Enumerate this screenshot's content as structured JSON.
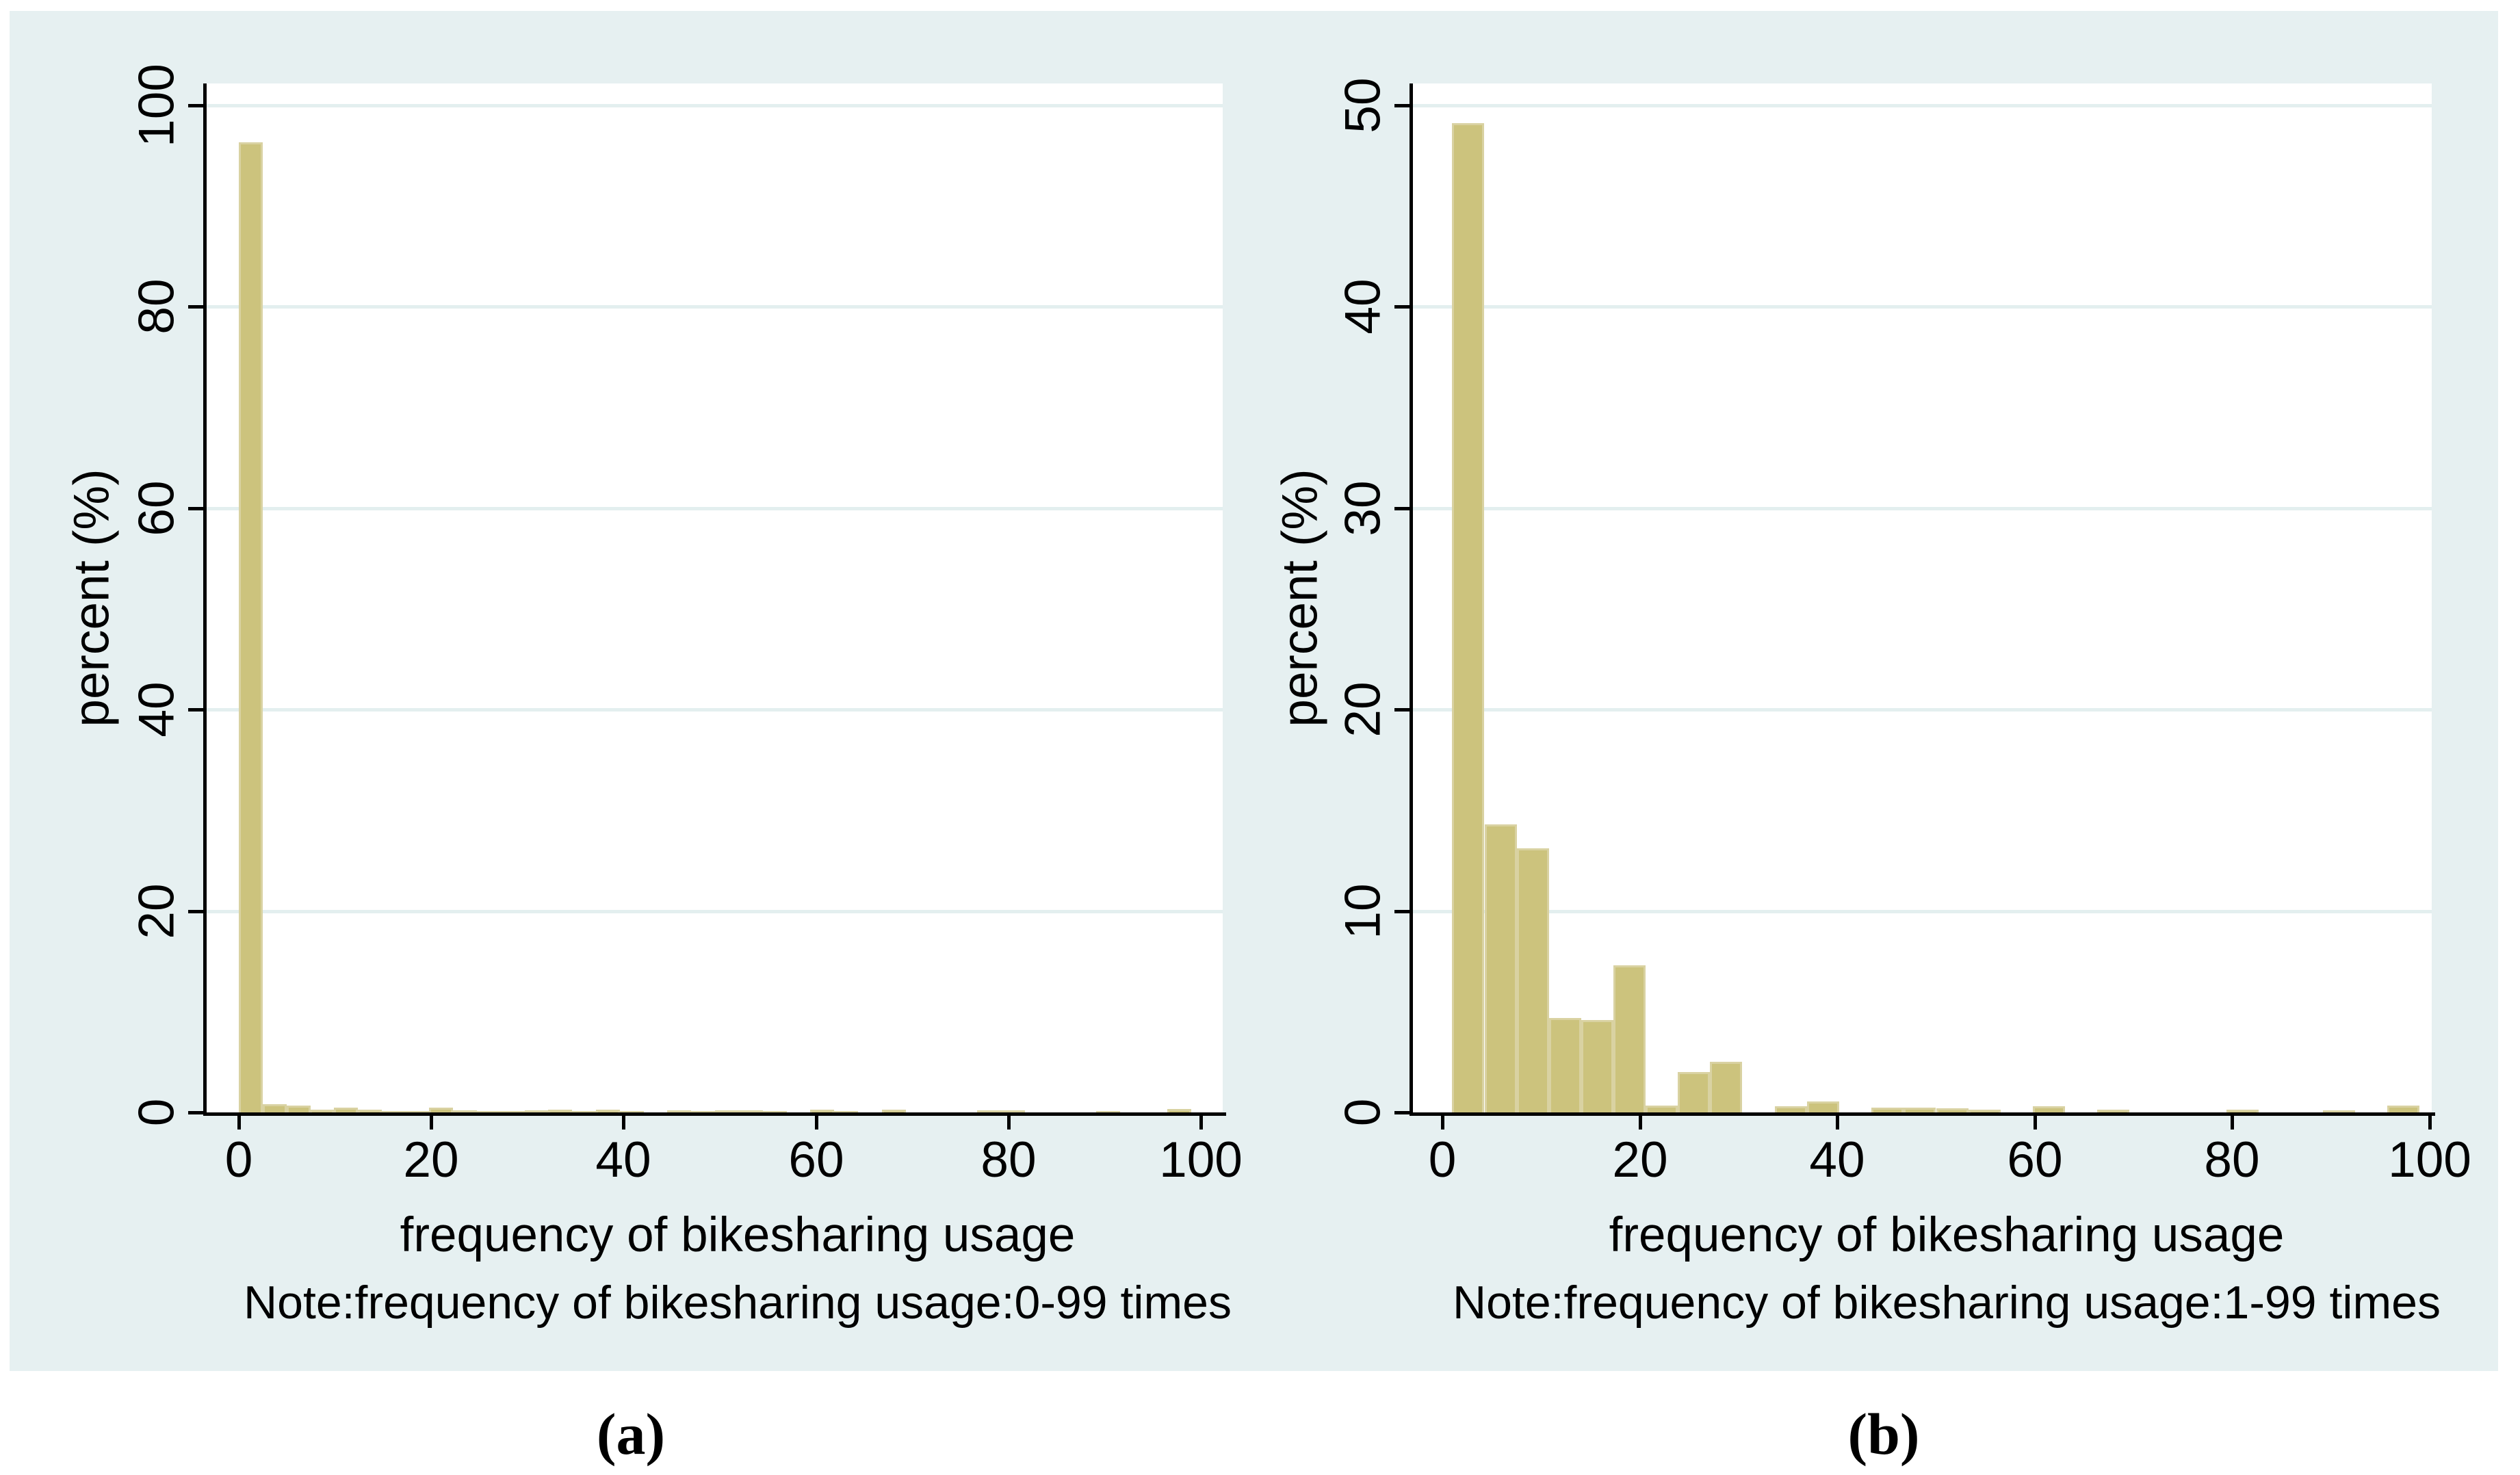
{
  "page": {
    "background": "#FFFFFF"
  },
  "figure": {
    "background": "#E6F0F1",
    "plot_background": "#FFFFFF",
    "bar_fill": "#CCC37D",
    "bar_border": "#D9D2A2",
    "gridline_color": "#E3EFEF",
    "axis_color": "#000000",
    "text_color": "#000000"
  },
  "captions": [
    {
      "label": "(a)"
    },
    {
      "label": "(b)"
    }
  ],
  "chart_data": [
    {
      "panel": "a",
      "type": "bar",
      "subtype": "histogram",
      "title": "",
      "ylabel": "percent (%)",
      "xlabel": "frequency of bikesharing usage",
      "note": "Note:frequency of bikesharing usage:0-99 times",
      "x_range": [
        0,
        99
      ],
      "bin_width": 2.475,
      "xlim": [
        -3.5,
        102.5
      ],
      "ylim": [
        0,
        100
      ],
      "x_ticks": [
        0,
        20,
        40,
        60,
        80,
        100
      ],
      "y_ticks": [
        0,
        20,
        40,
        60,
        80,
        100
      ],
      "grid": "horizontal",
      "legend": "none",
      "y_tick_label_rotation": -90,
      "bars": [
        {
          "x": 0,
          "pct": 96.3
        },
        {
          "x": 2.475,
          "pct": 0.82
        },
        {
          "x": 4.95,
          "pct": 0.65
        },
        {
          "x": 7.425,
          "pct": 0.3
        },
        {
          "x": 9.9,
          "pct": 0.5
        },
        {
          "x": 12.375,
          "pct": 0.25
        },
        {
          "x": 14.85,
          "pct": 0.15
        },
        {
          "x": 17.325,
          "pct": 0.15
        },
        {
          "x": 19.8,
          "pct": 0.45
        },
        {
          "x": 22.275,
          "pct": 0.18
        },
        {
          "x": 24.75,
          "pct": 0.15
        },
        {
          "x": 27.225,
          "pct": 0.15
        },
        {
          "x": 29.7,
          "pct": 0.18
        },
        {
          "x": 32.175,
          "pct": 0.3
        },
        {
          "x": 34.65,
          "pct": 0.12
        },
        {
          "x": 37.125,
          "pct": 0.25
        },
        {
          "x": 39.6,
          "pct": 0.12
        },
        {
          "x": 44.55,
          "pct": 0.2
        },
        {
          "x": 47.025,
          "pct": 0.12
        },
        {
          "x": 49.5,
          "pct": 0.22
        },
        {
          "x": 51.975,
          "pct": 0.22
        },
        {
          "x": 54.45,
          "pct": 0.12
        },
        {
          "x": 59.4,
          "pct": 0.25
        },
        {
          "x": 61.875,
          "pct": 0.12
        },
        {
          "x": 66.825,
          "pct": 0.25
        },
        {
          "x": 76.725,
          "pct": 0.2
        },
        {
          "x": 79.2,
          "pct": 0.2
        },
        {
          "x": 89.1,
          "pct": 0.15
        },
        {
          "x": 96.525,
          "pct": 0.36
        }
      ]
    },
    {
      "panel": "b",
      "type": "bar",
      "subtype": "histogram",
      "title": "",
      "ylabel": "percent (%)",
      "xlabel": "frequency of bikesharing usage",
      "note": "Note:frequency of bikesharing usage:1-99 times",
      "x_range": [
        1,
        99
      ],
      "bin_width": 3.2667,
      "xlim": [
        -3,
        103
      ],
      "ylim": [
        0,
        50
      ],
      "x_ticks": [
        0,
        20,
        40,
        60,
        80,
        100
      ],
      "y_ticks": [
        0,
        10,
        20,
        30,
        40,
        50
      ],
      "grid": "horizontal",
      "legend": "none",
      "y_tick_label_rotation": -90,
      "bars": [
        {
          "x": 1,
          "pct": 49.1
        },
        {
          "x": 4.27,
          "pct": 14.3
        },
        {
          "x": 7.53,
          "pct": 13.1
        },
        {
          "x": 10.8,
          "pct": 4.7
        },
        {
          "x": 14.07,
          "pct": 4.6
        },
        {
          "x": 17.33,
          "pct": 7.3
        },
        {
          "x": 20.6,
          "pct": 0.35
        },
        {
          "x": 23.87,
          "pct": 2.0
        },
        {
          "x": 27.13,
          "pct": 2.5
        },
        {
          "x": 33.67,
          "pct": 0.3
        },
        {
          "x": 36.93,
          "pct": 0.55
        },
        {
          "x": 43.47,
          "pct": 0.25
        },
        {
          "x": 46.73,
          "pct": 0.25
        },
        {
          "x": 50.0,
          "pct": 0.2
        },
        {
          "x": 53.27,
          "pct": 0.12
        },
        {
          "x": 59.8,
          "pct": 0.3
        },
        {
          "x": 66.33,
          "pct": 0.12
        },
        {
          "x": 79.4,
          "pct": 0.12
        },
        {
          "x": 89.2,
          "pct": 0.1
        },
        {
          "x": 95.73,
          "pct": 0.35
        }
      ]
    }
  ]
}
